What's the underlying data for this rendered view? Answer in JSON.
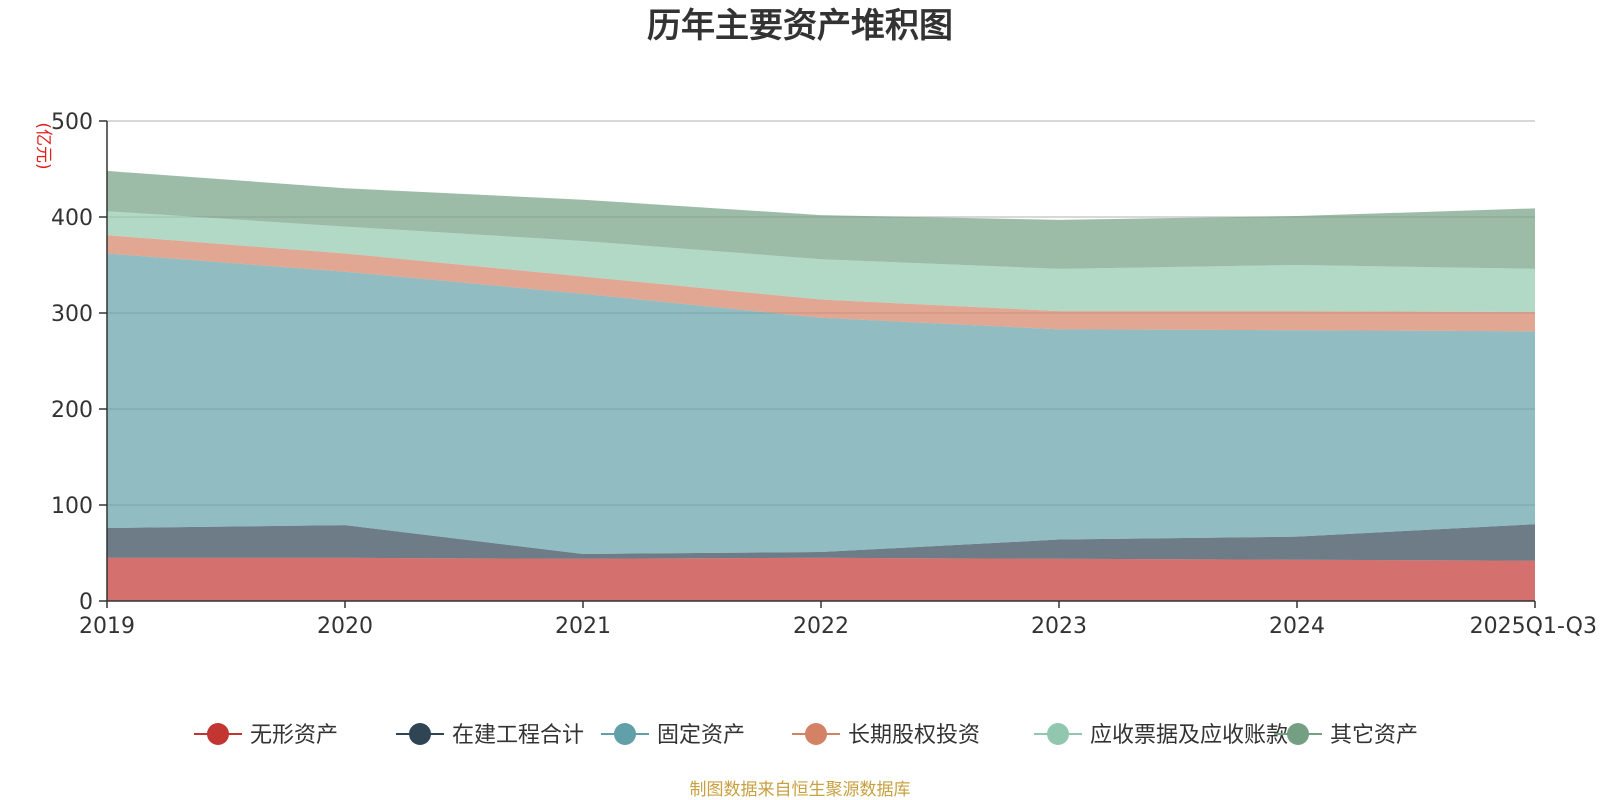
{
  "chart_data": {
    "type": "area",
    "stacked": true,
    "title": "历年主要资产堆积图",
    "ylabel": "(亿元)",
    "xlabel": "",
    "categories": [
      "2019",
      "2020",
      "2021",
      "2022",
      "2023",
      "2024",
      "2025Q1-Q3"
    ],
    "ylim": [
      0,
      500
    ],
    "yticks": [
      "0",
      "100",
      "200",
      "300",
      "400",
      "500"
    ],
    "grid": true,
    "legend_position": "bottom",
    "series": [
      {
        "name": "无形资产",
        "color": "#c23531",
        "values": [
          45,
          45,
          44,
          45,
          44,
          43,
          42
        ]
      },
      {
        "name": "在建工程合计",
        "color": "#2f4554",
        "values": [
          31,
          34,
          5,
          6,
          20,
          24,
          38
        ]
      },
      {
        "name": "固定资产",
        "color": "#61a0a8",
        "values": [
          286,
          264,
          271,
          244,
          219,
          215,
          201
        ]
      },
      {
        "name": "长期股权投资",
        "color": "#d48265",
        "values": [
          19,
          19,
          18,
          19,
          19,
          20,
          20
        ]
      },
      {
        "name": "应收票据及应收账款",
        "color": "#91c7ae",
        "values": [
          25,
          28,
          37,
          42,
          44,
          48,
          45
        ]
      },
      {
        "name": "其它资产",
        "color": "#749f83",
        "values": [
          42,
          40,
          43,
          46,
          51,
          51,
          63
        ]
      }
    ]
  },
  "footer": {
    "source": "制图数据来自恒生聚源数据库"
  }
}
